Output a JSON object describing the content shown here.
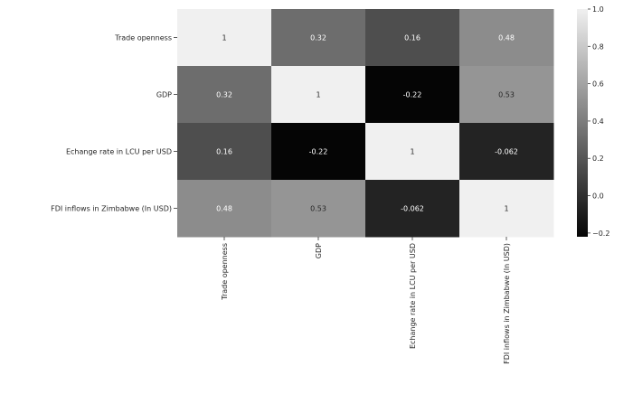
{
  "chart_data": {
    "type": "heatmap",
    "title": "",
    "row_labels": [
      "Trade openness",
      "GDP",
      "Echange rate in LCU per USD",
      "FDI inflows in Zimbabwe (In USD)"
    ],
    "col_labels": [
      "Trade openness",
      "GDP",
      "Echange rate in LCU per USD",
      "FDI inflows in Zimbabwe (In USD)"
    ],
    "values": [
      [
        1,
        0.32,
        0.16,
        0.48
      ],
      [
        0.32,
        1,
        -0.22,
        0.53
      ],
      [
        0.16,
        -0.22,
        1,
        -0.062
      ],
      [
        0.48,
        0.53,
        -0.062,
        1
      ]
    ],
    "value_labels": [
      [
        "1",
        "0.32",
        "0.16",
        "0.48"
      ],
      [
        "0.32",
        "1",
        "-0.22",
        "0.53"
      ],
      [
        "0.16",
        "-0.22",
        "1",
        "-0.062"
      ],
      [
        "0.48",
        "0.53",
        "-0.062",
        "1"
      ]
    ],
    "colormap": "gray",
    "colorbar": {
      "range": [
        -0.22,
        1.0
      ],
      "ticks": [
        1.0,
        0.8,
        0.6,
        0.4,
        0.2,
        0.0,
        -0.2
      ],
      "tick_labels": [
        "1.0",
        "0.8",
        "0.6",
        "0.4",
        "0.2",
        "0.0",
        "−0.2"
      ]
    }
  }
}
